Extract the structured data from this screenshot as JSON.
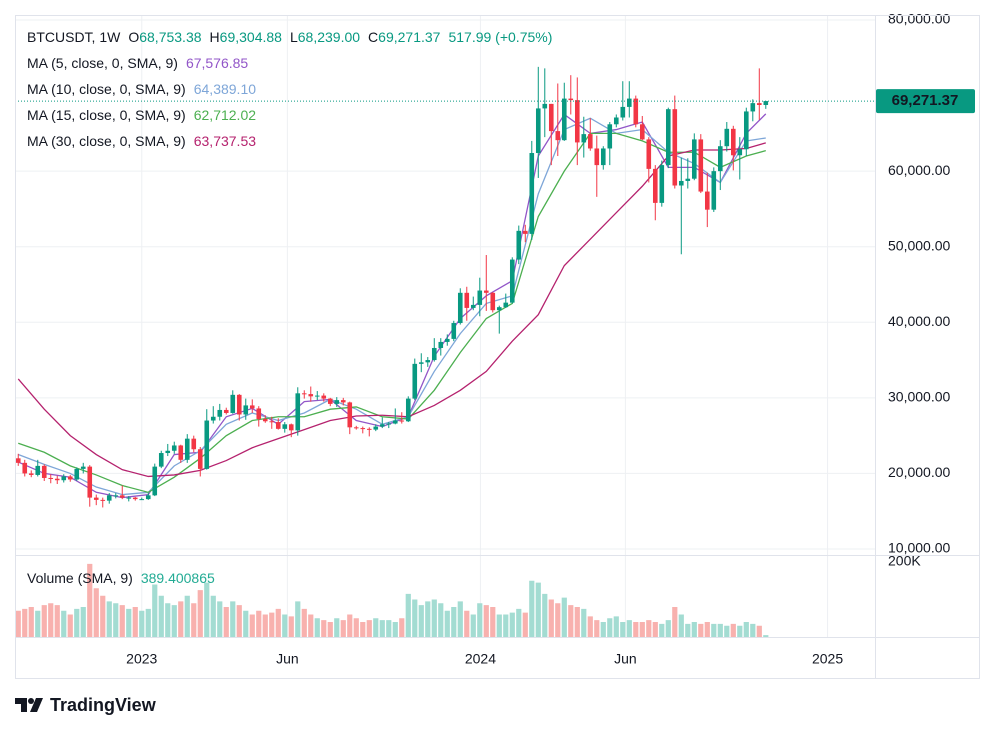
{
  "chart_data": {
    "type": "candlestick",
    "symbol": "BTCUSDT, 1W",
    "ohlc": [
      {
        "key": "O",
        "value": 68753.38,
        "label": "68,753.38"
      },
      {
        "key": "H",
        "value": 69304.88,
        "label": "69,304.88"
      },
      {
        "key": "L",
        "value": 68239,
        "label": "68,239.00"
      },
      {
        "key": "C",
        "value": 69271.37,
        "label": "69,271.37"
      }
    ],
    "change_label": "517.99 (+0.75%)",
    "last_price": {
      "value": 69271.37,
      "label": "69,271.37"
    },
    "up_color": "#089981",
    "down_color": "#f23645",
    "grid": true,
    "xlim": [
      -0.5,
      131.8
    ],
    "xticks": [
      {
        "value": 19,
        "label": "2023"
      },
      {
        "value": 41.4,
        "label": "Jun"
      },
      {
        "value": 71.1,
        "label": "2024"
      },
      {
        "value": 93.4,
        "label": "Jun"
      },
      {
        "value": 124.5,
        "label": "2025"
      }
    ],
    "ylim": [
      9206,
      80662
    ],
    "yticks": [
      {
        "value": 10000,
        "label": "10,000.00"
      },
      {
        "value": 20000,
        "label": "20,000.00"
      },
      {
        "value": 30000,
        "label": "30,000.00"
      },
      {
        "value": 40000,
        "label": "40,000.00"
      },
      {
        "value": 50000,
        "label": "50,000.00"
      },
      {
        "value": 60000,
        "label": "60,000.00"
      },
      {
        "value": 80000,
        "label": "80,000.00"
      }
    ],
    "candles": [
      [
        22000,
        22600,
        21000,
        21400
      ],
      [
        21400,
        21800,
        19600,
        20000
      ],
      [
        20000,
        20400,
        19500,
        19800
      ],
      [
        19800,
        21800,
        19600,
        21000
      ],
      [
        21000,
        21200,
        19000,
        19400
      ],
      [
        19400,
        19900,
        18700,
        19300
      ],
      [
        19300,
        19700,
        18600,
        19100
      ],
      [
        19100,
        19900,
        18800,
        19600
      ],
      [
        19600,
        19800,
        18900,
        19200
      ],
      [
        19200,
        20800,
        19000,
        20600
      ],
      [
        20600,
        21400,
        20000,
        20900
      ],
      [
        20900,
        21100,
        15600,
        16800
      ],
      [
        16800,
        17200,
        15800,
        16500
      ],
      [
        16500,
        16800,
        15500,
        16400
      ],
      [
        16400,
        17400,
        16000,
        17100
      ],
      [
        17100,
        17400,
        16700,
        17100
      ],
      [
        17100,
        18400,
        16600,
        16800
      ],
      [
        16800,
        17000,
        16300,
        16800
      ],
      [
        16800,
        16900,
        16400,
        16600
      ],
      [
        16600,
        16800,
        16500,
        16600
      ],
      [
        16600,
        17400,
        16500,
        17100
      ],
      [
        17100,
        21300,
        17000,
        20900
      ],
      [
        20900,
        23000,
        20700,
        22700
      ],
      [
        22700,
        23900,
        22300,
        23000
      ],
      [
        23000,
        24200,
        22600,
        23700
      ],
      [
        23700,
        23800,
        21400,
        21800
      ],
      [
        21800,
        25200,
        21400,
        24600
      ],
      [
        24600,
        25000,
        22800,
        23200
      ],
      [
        23200,
        23500,
        19600,
        20600
      ],
      [
        20600,
        28500,
        20500,
        27000
      ],
      [
        27000,
        28900,
        26600,
        27500
      ],
      [
        27500,
        29200,
        27000,
        28400
      ],
      [
        28400,
        28700,
        27800,
        28000
      ],
      [
        28000,
        31000,
        27900,
        30400
      ],
      [
        30400,
        30500,
        27000,
        27800
      ],
      [
        27800,
        29900,
        27100,
        29000
      ],
      [
        29000,
        29800,
        28000,
        28600
      ],
      [
        28600,
        28900,
        26200,
        27200
      ],
      [
        27200,
        27700,
        26700,
        26900
      ],
      [
        26900,
        27500,
        25900,
        26800
      ],
      [
        26800,
        27300,
        25800,
        25900
      ],
      [
        25900,
        26800,
        25400,
        26500
      ],
      [
        26500,
        26600,
        24800,
        25700
      ],
      [
        25700,
        31400,
        25000,
        30600
      ],
      [
        30600,
        31000,
        29900,
        30500
      ],
      [
        30500,
        31500,
        29500,
        30200
      ],
      [
        30200,
        30900,
        29700,
        30300
      ],
      [
        30300,
        30600,
        29500,
        29900
      ],
      [
        29900,
        30000,
        28900,
        29200
      ],
      [
        29200,
        30100,
        28800,
        29700
      ],
      [
        29700,
        30000,
        29000,
        29400
      ],
      [
        29400,
        29500,
        25200,
        26100
      ],
      [
        26100,
        26300,
        25800,
        26000
      ],
      [
        26000,
        26200,
        25300,
        25900
      ],
      [
        25900,
        26100,
        24900,
        25800
      ],
      [
        25800,
        26500,
        25600,
        26200
      ],
      [
        26200,
        27400,
        26000,
        26500
      ],
      [
        26500,
        26800,
        26000,
        26600
      ],
      [
        26600,
        28600,
        26500,
        27000
      ],
      [
        27000,
        28100,
        26600,
        26900
      ],
      [
        26900,
        30200,
        26800,
        29900
      ],
      [
        29900,
        35200,
        29700,
        34500
      ],
      [
        34500,
        35900,
        33400,
        34700
      ],
      [
        34700,
        35400,
        34100,
        35000
      ],
      [
        35000,
        37900,
        34800,
        36600
      ],
      [
        36600,
        37900,
        35600,
        37400
      ],
      [
        37400,
        38400,
        36900,
        37800
      ],
      [
        37800,
        40200,
        37500,
        39900
      ],
      [
        39900,
        44500,
        39700,
        43900
      ],
      [
        43900,
        44700,
        40200,
        41900
      ],
      [
        41900,
        43400,
        41600,
        42300
      ],
      [
        42300,
        45900,
        40800,
        44200
      ],
      [
        44200,
        48900,
        41500,
        43900
      ],
      [
        43900,
        44000,
        41300,
        41600
      ],
      [
        41600,
        42200,
        38500,
        42000
      ],
      [
        42000,
        43800,
        41900,
        42600
      ],
      [
        42600,
        48600,
        42500,
        48300
      ],
      [
        48300,
        52800,
        47700,
        52100
      ],
      [
        52100,
        52900,
        50600,
        51700
      ],
      [
        51700,
        64000,
        50900,
        62400
      ],
      [
        62400,
        73800,
        59100,
        68300
      ],
      [
        68300,
        73600,
        64500,
        68900
      ],
      [
        68900,
        68900,
        60800,
        65300
      ],
      [
        65300,
        71600,
        62000,
        64100
      ],
      [
        64100,
        71700,
        64000,
        69600
      ],
      [
        69600,
        72700,
        67500,
        69400
      ],
      [
        69400,
        72400,
        60800,
        63800
      ],
      [
        63800,
        67200,
        61800,
        64900
      ],
      [
        64900,
        67000,
        62700,
        63000
      ],
      [
        63000,
        64700,
        56600,
        60800
      ],
      [
        60800,
        63300,
        60200,
        63000
      ],
      [
        63000,
        66500,
        60800,
        66200
      ],
      [
        66200,
        67500,
        65800,
        67100
      ],
      [
        67100,
        71900,
        66700,
        68500
      ],
      [
        68500,
        71900,
        67100,
        69600
      ],
      [
        69600,
        70000,
        65800,
        66200
      ],
      [
        66200,
        67300,
        64100,
        64200
      ],
      [
        64200,
        64500,
        58500,
        60300
      ],
      [
        60300,
        60800,
        53500,
        55800
      ],
      [
        55800,
        61400,
        55300,
        60800
      ],
      [
        60800,
        68400,
        60400,
        68200
      ],
      [
        68200,
        70000,
        57700,
        58100
      ],
      [
        58100,
        61800,
        49000,
        58700
      ],
      [
        58700,
        61700,
        57700,
        59000
      ],
      [
        59000,
        65000,
        58800,
        64200
      ],
      [
        64200,
        64900,
        57100,
        57300
      ],
      [
        57300,
        59800,
        52600,
        54900
      ],
      [
        54900,
        60500,
        54600,
        60000
      ],
      [
        60000,
        64100,
        57500,
        63300
      ],
      [
        63300,
        66500,
        62600,
        65600
      ],
      [
        65600,
        66000,
        60100,
        62100
      ],
      [
        62100,
        64500,
        58900,
        62900
      ],
      [
        62900,
        68400,
        62000,
        67900
      ],
      [
        67900,
        69500,
        66600,
        69000
      ],
      [
        69000,
        73600,
        66800,
        68753.38
      ],
      [
        68753.38,
        69304.88,
        68239,
        69271.37
      ]
    ],
    "ma_x": [
      0,
      4,
      8,
      12,
      16,
      20,
      24,
      28,
      32,
      36,
      40,
      44,
      48,
      52,
      56,
      60,
      64,
      68,
      72,
      76,
      80,
      84,
      88,
      92,
      96,
      100,
      104,
      108,
      112,
      115
    ],
    "mas": [
      {
        "name": "MA (5, close, 0, SMA, 9)",
        "color": "#9256c8",
        "value_label": "67,576.85",
        "values": [
          21500,
          20000,
          19500,
          17500,
          16800,
          17200,
          22500,
          22800,
          27500,
          28600,
          26500,
          29500,
          29800,
          27000,
          26200,
          27500,
          35500,
          40500,
          43500,
          45500,
          62000,
          67500,
          65000,
          65500,
          66500,
          60500,
          60500,
          58500,
          65000,
          67576.85
        ]
      },
      {
        "name": "MA (10, close, 0, SMA, 9)",
        "color": "#7ea6d8",
        "value_label": "64,389.10",
        "values": [
          22500,
          21200,
          20000,
          18200,
          17200,
          17500,
          21000,
          23000,
          26500,
          28000,
          27000,
          28000,
          29800,
          28500,
          26500,
          27500,
          33500,
          38500,
          42500,
          43500,
          57000,
          65500,
          67000,
          65000,
          65500,
          62500,
          61000,
          58500,
          64000,
          64389.1
        ]
      },
      {
        "name": "MA (15, close, 0, SMA, 9)",
        "color": "#4caf50",
        "value_label": "62,712.02",
        "values": [
          24000,
          22800,
          21000,
          19800,
          18400,
          17500,
          19500,
          22000,
          25000,
          27000,
          27500,
          27500,
          28500,
          28800,
          27500,
          27200,
          31000,
          36000,
          40500,
          42500,
          54000,
          60000,
          65000,
          65000,
          64000,
          62500,
          62500,
          60500,
          62000,
          62712.02
        ]
      },
      {
        "name": "MA (30, close, 0, SMA, 9)",
        "color": "#b5226e",
        "value_label": "63,737.53",
        "values": [
          32500,
          28500,
          25000,
          22500,
          20500,
          19600,
          19800,
          20400,
          21700,
          23400,
          24600,
          25800,
          27000,
          27600,
          27700,
          27500,
          29000,
          31000,
          33500,
          37500,
          41000,
          47500,
          51000,
          54500,
          58000,
          62000,
          62800,
          62800,
          63000,
          63737.53
        ]
      }
    ],
    "volume": {
      "title": "Volume (SMA, 9)",
      "value_label": "389.400865",
      "ylim": [
        0,
        218667
      ],
      "yticks": [
        {
          "value": 200000,
          "label": "200K"
        }
      ],
      "up_color": "#a3dcd2",
      "down_color": "#f8b1ae",
      "values": [
        70000,
        75000,
        80000,
        70000,
        85000,
        90000,
        85000,
        70000,
        60000,
        75000,
        80000,
        195000,
        130000,
        110000,
        95000,
        90000,
        85000,
        75000,
        80000,
        70000,
        75000,
        140000,
        110000,
        90000,
        85000,
        95000,
        110000,
        90000,
        125000,
        145000,
        110000,
        95000,
        80000,
        95000,
        85000,
        70000,
        60000,
        70000,
        60000,
        65000,
        75000,
        60000,
        55000,
        95000,
        75000,
        60000,
        50000,
        45000,
        40000,
        50000,
        45000,
        60000,
        50000,
        40000,
        45000,
        50000,
        45000,
        45000,
        40000,
        50000,
        115000,
        100000,
        85000,
        95000,
        100000,
        90000,
        70000,
        80000,
        95000,
        70000,
        60000,
        90000,
        85000,
        80000,
        60000,
        60000,
        65000,
        75000,
        65000,
        150000,
        145000,
        115000,
        100000,
        90000,
        105000,
        85000,
        80000,
        75000,
        55000,
        45000,
        40000,
        50000,
        55000,
        40000,
        45000,
        40000,
        40000,
        45000,
        40000,
        35000,
        45000,
        80000,
        60000,
        35000,
        40000,
        35000,
        40000,
        35000,
        35000,
        30000,
        35000,
        30000,
        40000,
        35000,
        30000,
        5000
      ]
    },
    "brand": "TradingView"
  }
}
